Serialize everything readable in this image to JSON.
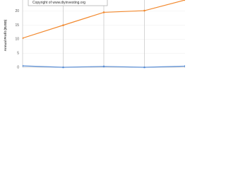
{
  "chart_data": {
    "type": "line",
    "annotation": "Copyright of www.diyinvesting.org",
    "y_label": "Annual Profit ($USD)",
    "categories": [
      null,
      null,
      null,
      null,
      null
    ],
    "series": [
      {
        "name": null,
        "color": "#f28a30",
        "values": [
          10.4,
          15,
          19.6,
          20.2,
          24
        ]
      },
      {
        "name": null,
        "color": "#5b8fd6",
        "values": [
          0.5,
          0,
          0.3,
          0,
          0.4
        ]
      }
    ],
    "ylim": [
      0,
      24
    ],
    "yticks": [
      0,
      5,
      10,
      15,
      20
    ],
    "grid": true
  }
}
